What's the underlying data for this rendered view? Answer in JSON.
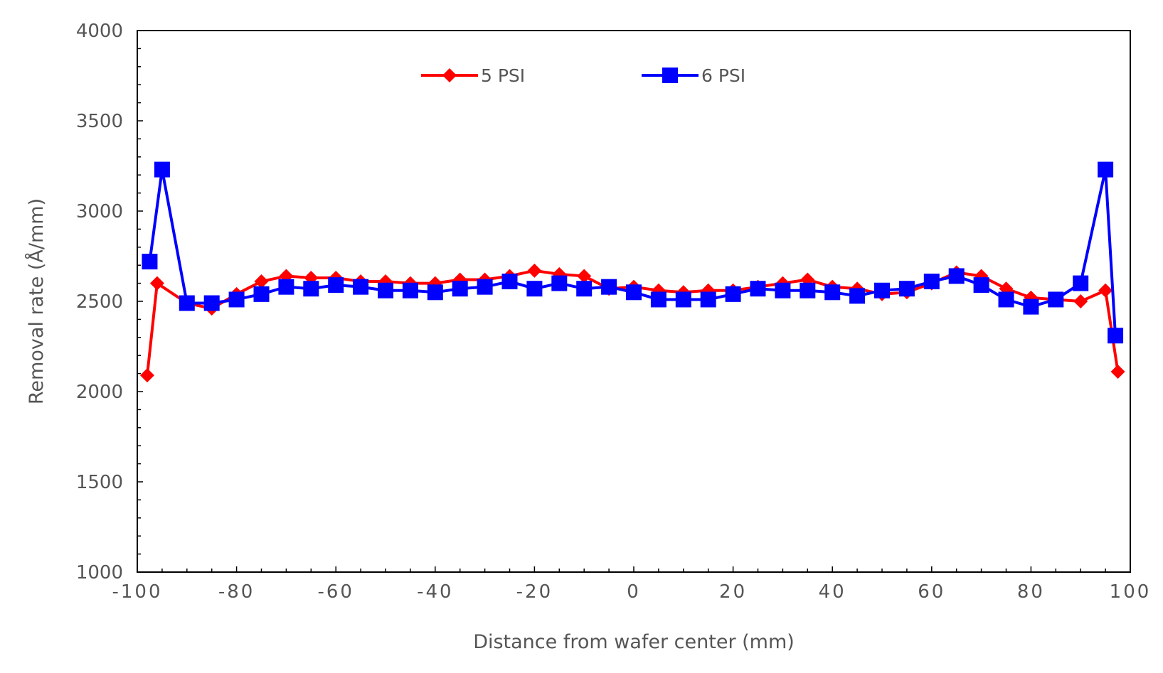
{
  "chart_data": {
    "type": "line",
    "title": "",
    "xlabel": "Distance from wafer center (mm)",
    "ylabel": "Removal rate (Å/mm)",
    "xlim": [
      -100,
      100
    ],
    "ylim": [
      1000,
      4000
    ],
    "x_ticks": [
      -100,
      -80,
      -60,
      -40,
      -20,
      0,
      20,
      40,
      60,
      80,
      100
    ],
    "x_tick_labels": [
      "-100",
      "-80",
      "-60",
      "-40",
      "-20",
      "0",
      "20",
      "40",
      "60",
      "80",
      "100"
    ],
    "y_ticks": [
      1000,
      1500,
      2000,
      2500,
      3000,
      3500,
      4000
    ],
    "y_tick_labels": [
      "1000",
      "1500",
      "2000",
      "2500",
      "3000",
      "3500",
      "4000"
    ],
    "grid": false,
    "legend_position": "top-center",
    "series": [
      {
        "name": "5 PSI",
        "color": "#ff0000",
        "marker": "diamond",
        "x": [
          -98,
          -96,
          -90,
          -85,
          -80,
          -75,
          -70,
          -65,
          -60,
          -55,
          -50,
          -45,
          -40,
          -35,
          -30,
          -25,
          -20,
          -15,
          -10,
          -5,
          0,
          5,
          10,
          15,
          20,
          25,
          30,
          35,
          40,
          45,
          50,
          55,
          60,
          65,
          70,
          75,
          80,
          85,
          90,
          95,
          97.5
        ],
        "y": [
          2090,
          2600,
          2490,
          2460,
          2540,
          2610,
          2640,
          2630,
          2630,
          2610,
          2610,
          2600,
          2600,
          2620,
          2620,
          2640,
          2670,
          2650,
          2640,
          2570,
          2580,
          2560,
          2550,
          2560,
          2560,
          2580,
          2600,
          2620,
          2580,
          2570,
          2540,
          2550,
          2600,
          2660,
          2640,
          2570,
          2520,
          2510,
          2500,
          2560,
          2110
        ]
      },
      {
        "name": "6 PSI",
        "color": "#0000ff",
        "marker": "square",
        "x": [
          -97.5,
          -95,
          -90,
          -85,
          -80,
          -75,
          -70,
          -65,
          -60,
          -55,
          -50,
          -45,
          -40,
          -35,
          -30,
          -25,
          -20,
          -15,
          -10,
          -5,
          0,
          5,
          10,
          15,
          20,
          25,
          30,
          35,
          40,
          45,
          50,
          55,
          60,
          65,
          70,
          75,
          80,
          85,
          90,
          95,
          97
        ],
        "y": [
          2720,
          3230,
          2490,
          2490,
          2510,
          2540,
          2580,
          2570,
          2590,
          2580,
          2560,
          2560,
          2550,
          2570,
          2580,
          2610,
          2570,
          2600,
          2570,
          2580,
          2550,
          2510,
          2510,
          2510,
          2540,
          2570,
          2560,
          2560,
          2550,
          2530,
          2560,
          2570,
          2610,
          2640,
          2590,
          2510,
          2470,
          2510,
          2600,
          3230,
          2310
        ]
      }
    ]
  }
}
